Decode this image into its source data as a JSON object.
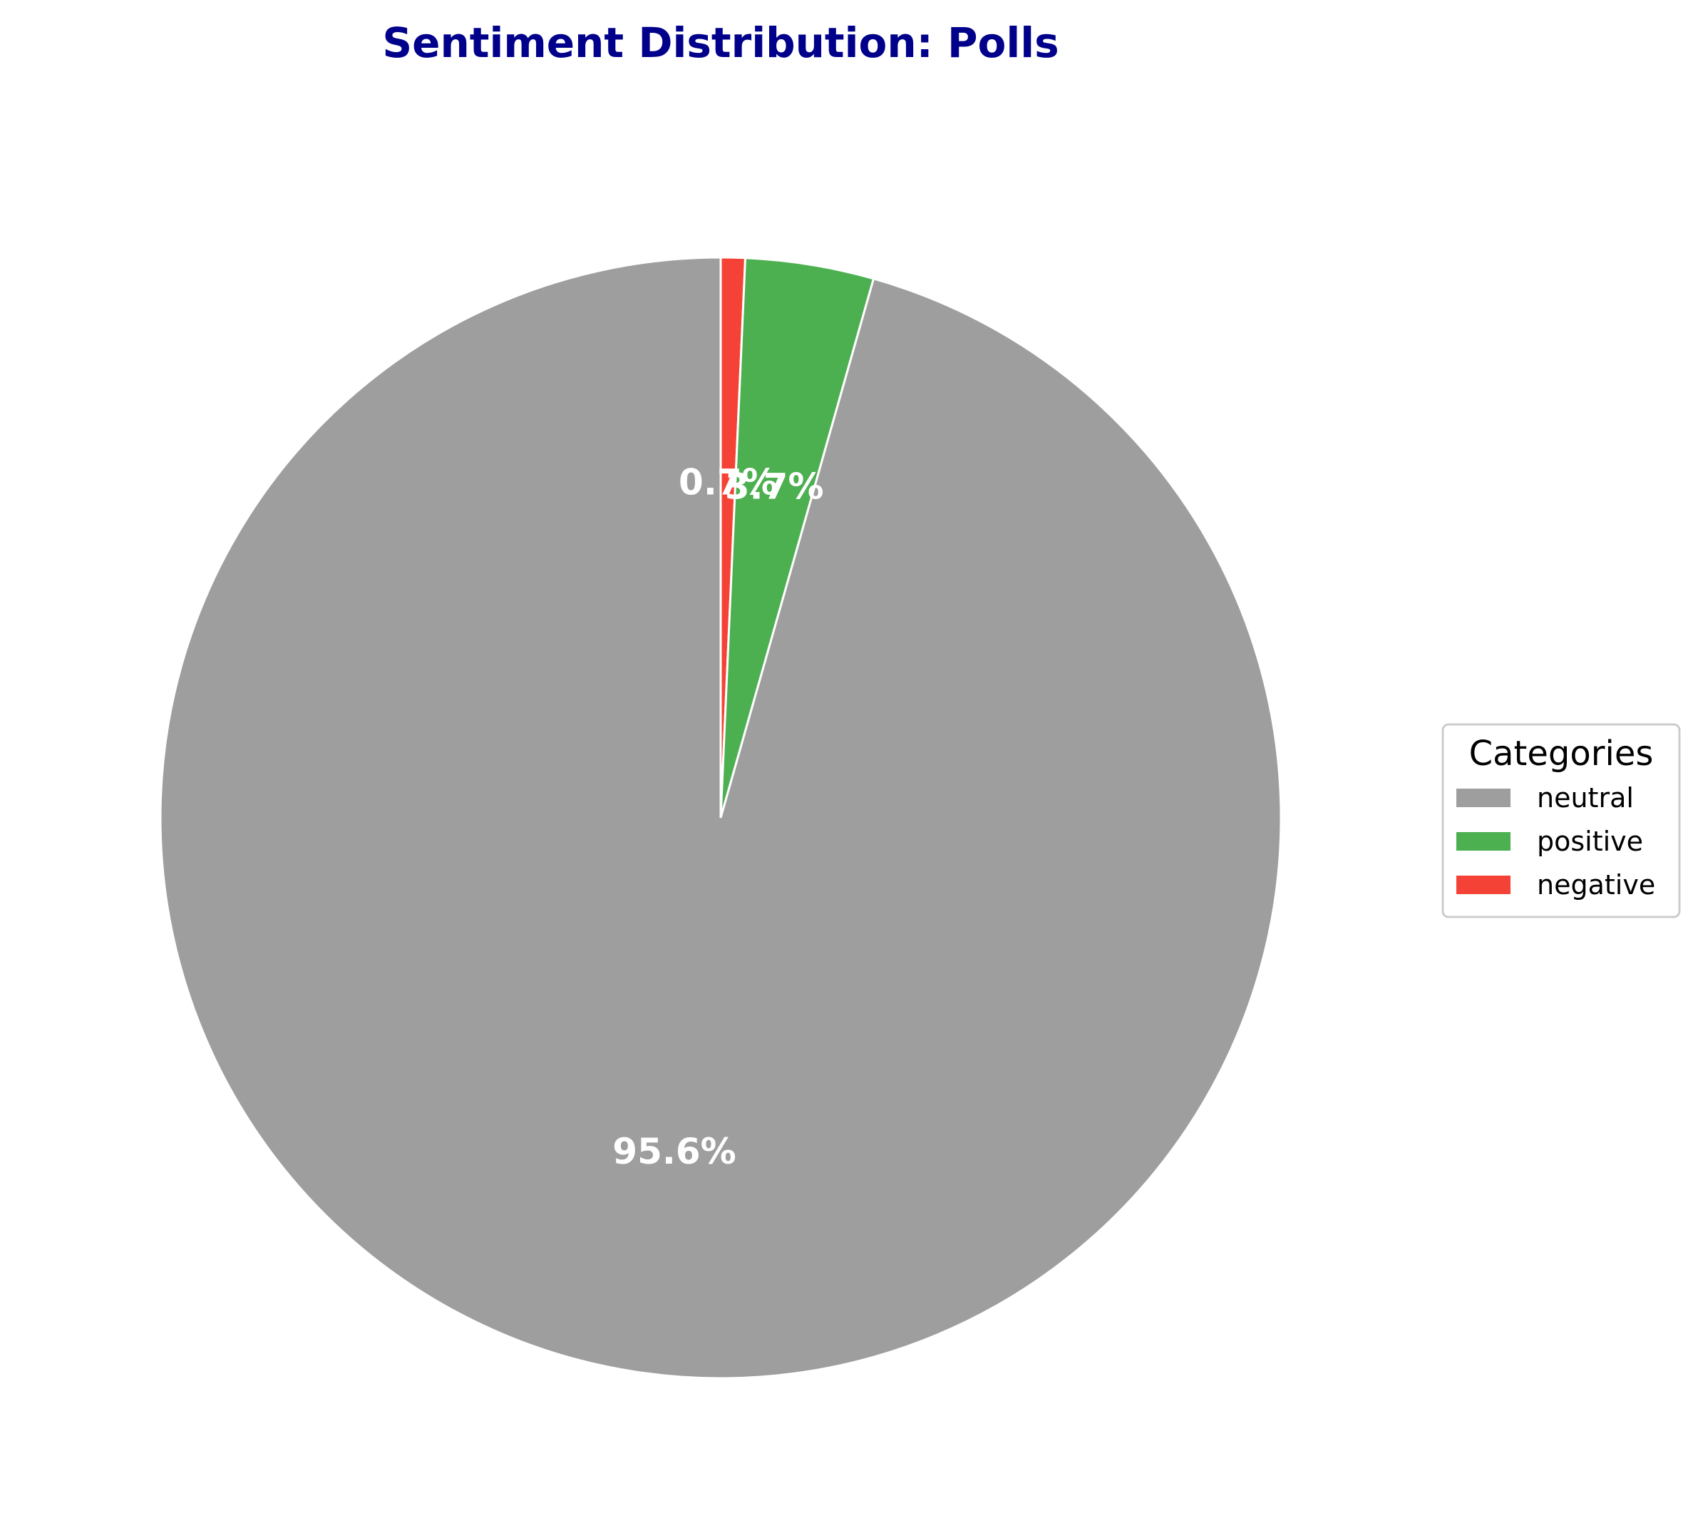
{
  "chart_data": {
    "type": "pie",
    "title": "Sentiment Distribution: Polls",
    "title_color": "#00008B",
    "slices": [
      {
        "label": "negative",
        "value": 0.7,
        "pct_label": "0.7%",
        "color": "#F44336"
      },
      {
        "label": "positive",
        "value": 3.7,
        "pct_label": "3.7%",
        "color": "#4CAF50"
      },
      {
        "label": "neutral",
        "value": 95.6,
        "pct_label": "95.6%",
        "color": "#9E9E9E"
      }
    ],
    "start_angle": "90deg, clockwise",
    "legend": {
      "title": "Categories",
      "placement": "center-right",
      "entries": [
        {
          "label": "neutral",
          "color": "#9E9E9E"
        },
        {
          "label": "positive",
          "color": "#4CAF50"
        },
        {
          "label": "negative",
          "color": "#F44336"
        }
      ]
    }
  }
}
